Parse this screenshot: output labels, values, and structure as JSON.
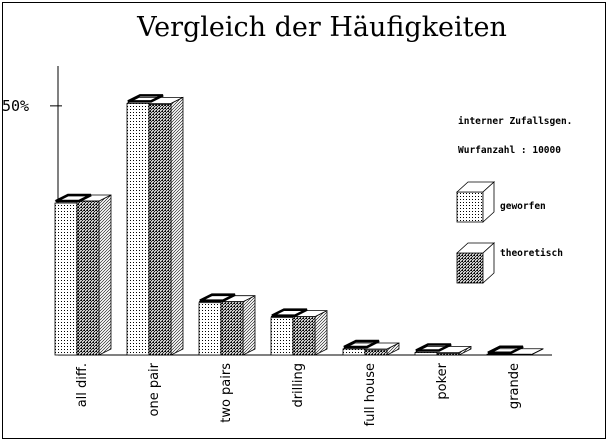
{
  "chart_data": {
    "type": "bar",
    "title": "Vergleich der Häufigkeiten",
    "categories": [
      "all diff.",
      "one pair",
      "two pairs",
      "drilling",
      "full house",
      "poker",
      "grande"
    ],
    "series": [
      {
        "name": "geworfen",
        "values": [
          30.5,
          50.5,
          10.5,
          7.5,
          1.2,
          0.5,
          0.05
        ]
      },
      {
        "name": "theoretisch",
        "values": [
          30.9,
          50.3,
          10.7,
          7.7,
          1.0,
          0.3,
          0.05
        ]
      }
    ],
    "ytick_label": "50%",
    "ytick_value": 50,
    "ylim": [
      0,
      58
    ],
    "info": [
      "interner Zufallsgen.",
      "Wurfanzahl : 10000"
    ]
  }
}
